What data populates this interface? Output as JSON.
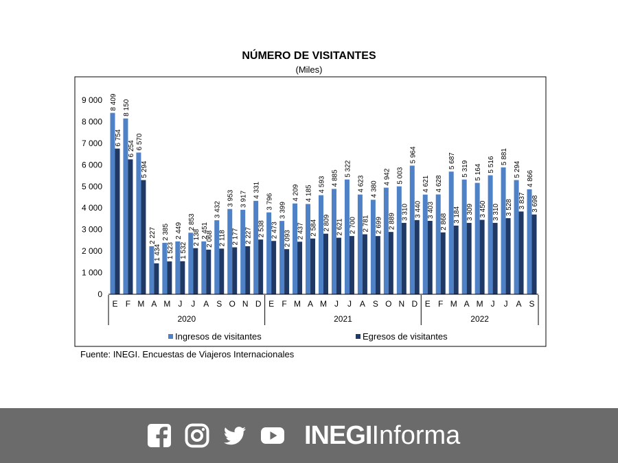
{
  "chart_data": {
    "type": "bar",
    "title": "NÚMERO DE VISITANTES",
    "subtitle": "(Miles)",
    "categories": [
      "E",
      "F",
      "M",
      "A",
      "M",
      "J",
      "J",
      "A",
      "S",
      "O",
      "N",
      "D",
      "E",
      "F",
      "M",
      "A",
      "M",
      "J",
      "J",
      "A",
      "S",
      "O",
      "N",
      "D",
      "E",
      "F",
      "M",
      "A",
      "M",
      "J",
      "J",
      "A",
      "S"
    ],
    "year_groups": [
      {
        "label": "2020",
        "count": 12
      },
      {
        "label": "2021",
        "count": 12
      },
      {
        "label": "2022",
        "count": 9
      }
    ],
    "series": [
      {
        "name": "Ingresos de visitantes",
        "color": "#4f81c7",
        "values": [
          8409,
          8150,
          6570,
          2227,
          2385,
          2449,
          2853,
          2451,
          3432,
          3953,
          3917,
          4331,
          3796,
          3399,
          4209,
          4185,
          4593,
          4885,
          5322,
          4623,
          4380,
          4942,
          5003,
          5964,
          4621,
          4628,
          5687,
          5319,
          5164,
          5516,
          5881,
          5294,
          4866
        ],
        "labels": [
          "8 409",
          "8 150",
          "6 570",
          "2 227",
          "2 385",
          "2 449",
          "2 853",
          "2 451",
          "3 432",
          "3 953",
          "3 917",
          "4 331",
          "3 796",
          "3 399",
          "4 209",
          "4 185",
          "4 593",
          "4 885",
          "5 322",
          "4 623",
          "4 380",
          "4 942",
          "5 003",
          "5 964",
          "4 621",
          "4 628",
          "5 687",
          "5 319",
          "5 164",
          "5 516",
          "5 881",
          "5 294",
          "4 866"
        ]
      },
      {
        "name": "Egresos de visitantes",
        "color": "#1f3864",
        "values": [
          6754,
          6254,
          5294,
          1434,
          1523,
          1532,
          2138,
          2068,
          2118,
          2177,
          2227,
          2538,
          2473,
          2093,
          2437,
          2584,
          2809,
          2621,
          2700,
          2781,
          2699,
          2889,
          3310,
          3440,
          3403,
          2868,
          3184,
          3309,
          3450,
          3310,
          3528,
          3837,
          3698
        ],
        "labels": [
          "6 754",
          "6 254",
          "5 294",
          "1 434",
          "1 523",
          "1 532",
          "2 138",
          "2 068",
          "2 118",
          "2 177",
          "2 227",
          "2 538",
          "2 473",
          "2 093",
          "2 437",
          "2 584",
          "2 809",
          "2 621",
          "2 700",
          "2 781",
          "2 699",
          "2 889",
          "3 310",
          "3 440",
          "3 403",
          "2 868",
          "3 184",
          "3 309",
          "3 450",
          "3 310",
          "3 528",
          "3 837",
          "3 698"
        ]
      }
    ],
    "y_ticks": [
      0,
      1000,
      2000,
      3000,
      4000,
      5000,
      6000,
      7000,
      8000,
      9000
    ],
    "y_tick_labels": [
      "0",
      "1 000",
      "2 000",
      "3 000",
      "4 000",
      "5 000",
      "6 000",
      "7 000",
      "8 000",
      "9 000"
    ],
    "ylim": [
      0,
      9000
    ],
    "grid": false,
    "legend_position": "bottom"
  },
  "source": "Fuente: INEGI. Encuestas de Viajeros Internacionales",
  "footer": {
    "background": "#6b6b6b",
    "icons": [
      "facebook-icon",
      "instagram-icon",
      "twitter-icon",
      "youtube-icon"
    ],
    "brand_bold": "INEGI",
    "brand_light": "Informa"
  }
}
